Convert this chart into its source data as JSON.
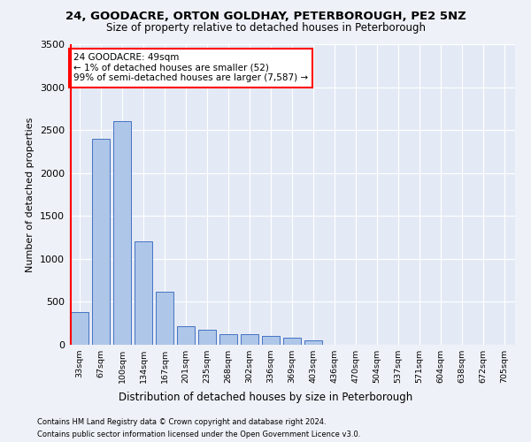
{
  "title1": "24, GOODACRE, ORTON GOLDHAY, PETERBOROUGH, PE2 5NZ",
  "title2": "Size of property relative to detached houses in Peterborough",
  "xlabel": "Distribution of detached houses by size in Peterborough",
  "ylabel": "Number of detached properties",
  "categories": [
    "33sqm",
    "67sqm",
    "100sqm",
    "134sqm",
    "167sqm",
    "201sqm",
    "235sqm",
    "268sqm",
    "302sqm",
    "336sqm",
    "369sqm",
    "403sqm",
    "436sqm",
    "470sqm",
    "504sqm",
    "537sqm",
    "571sqm",
    "604sqm",
    "638sqm",
    "672sqm",
    "705sqm"
  ],
  "values": [
    380,
    2400,
    2600,
    1200,
    620,
    220,
    180,
    120,
    120,
    100,
    80,
    50,
    0,
    0,
    0,
    0,
    0,
    0,
    0,
    0,
    0
  ],
  "bar_color": "#aec6e8",
  "bar_edge_color": "#4472c4",
  "vline_color": "red",
  "ylim": [
    0,
    3500
  ],
  "yticks": [
    0,
    500,
    1000,
    1500,
    2000,
    2500,
    3000,
    3500
  ],
  "annotation_title": "24 GOODACRE: 49sqm",
  "annotation_line1": "← 1% of detached houses are smaller (52)",
  "annotation_line2": "99% of semi-detached houses are larger (7,587) →",
  "footer1": "Contains HM Land Registry data © Crown copyright and database right 2024.",
  "footer2": "Contains public sector information licensed under the Open Government Licence v3.0.",
  "bg_color": "#eef2f8",
  "plot_bg_color": "#e4eaf5"
}
